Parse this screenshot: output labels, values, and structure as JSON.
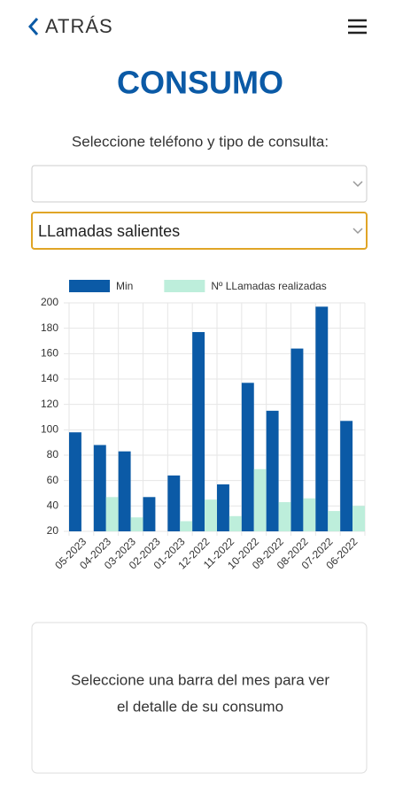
{
  "header": {
    "back": "ATRÁS"
  },
  "title": "CONSUMO",
  "prompt": "Seleccione teléfono y tipo de consulta:",
  "selects": {
    "type": "LLamadas salientes"
  },
  "chart_data": {
    "type": "bar",
    "categories": [
      "05-2023",
      "04-2023",
      "03-2023",
      "02-2023",
      "01-2023",
      "12-2022",
      "11-2022",
      "10-2022",
      "09-2022",
      "08-2022",
      "07-2022",
      "06-2022"
    ],
    "series": [
      {
        "name": "Min",
        "color": "#0b5aa6",
        "values": [
          98,
          88,
          83,
          47,
          64,
          177,
          57,
          137,
          115,
          164,
          197,
          107
        ]
      },
      {
        "name": "Nº LLamadas realizadas",
        "color": "#bdeedb",
        "values": [
          null,
          47,
          31,
          null,
          28,
          45,
          32,
          69,
          43,
          46,
          36,
          40
        ]
      }
    ],
    "ylim": [
      20,
      200
    ],
    "yticks": [
      20,
      40,
      60,
      80,
      100,
      120,
      140,
      160,
      180,
      200
    ],
    "grid": true,
    "legend": "top"
  },
  "info": {
    "lines": [
      "Seleccione una barra del mes para ver",
      "el detalle de su consumo"
    ]
  }
}
